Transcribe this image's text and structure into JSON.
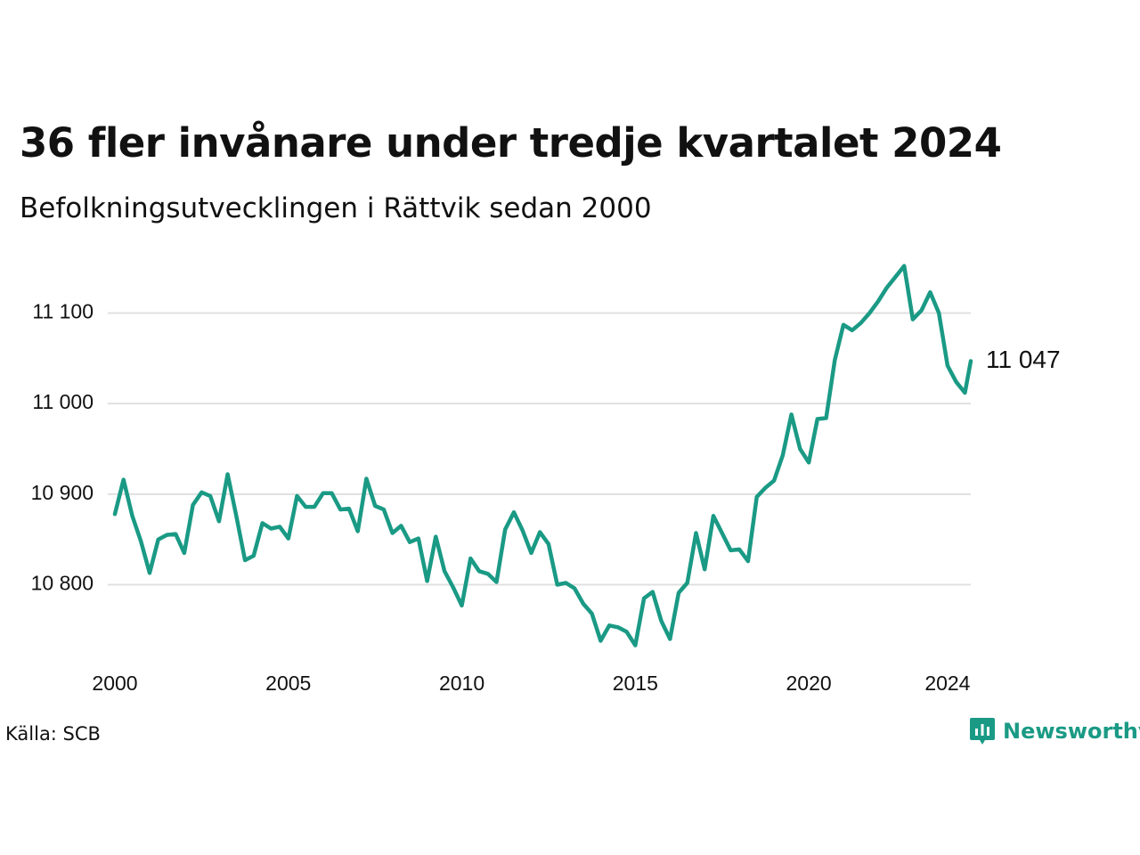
{
  "title": "36 fler invånare under tredje kvartalet 2024",
  "subtitle": "Befolkningsutvecklingen i Rättvik sedan 2000",
  "source": "Källa: SCB",
  "brand": {
    "name": "Newsworthy",
    "icon": "bar-chart-logo-icon",
    "color": "#1a9a85"
  },
  "chart_data": {
    "type": "line",
    "series_color": "#1a9a85",
    "grid": true,
    "ylim": [
      10725,
      11160
    ],
    "xlim": [
      2000,
      2024.67
    ],
    "y_ticks": [
      10800,
      10900,
      11000,
      11100
    ],
    "y_tick_labels": [
      "10 800",
      "10 900",
      "11 000",
      "11 100"
    ],
    "x_ticks": [
      2000,
      2005,
      2010,
      2015,
      2020,
      2024
    ],
    "x_tick_labels": [
      "2000",
      "2005",
      "2010",
      "2015",
      "2020",
      "2024"
    ],
    "end_label": "11 047",
    "x": [
      2000.0,
      2000.25,
      2000.5,
      2000.75,
      2001.0,
      2001.25,
      2001.5,
      2001.75,
      2002.0,
      2002.25,
      2002.5,
      2002.75,
      2003.0,
      2003.25,
      2003.5,
      2003.75,
      2004.0,
      2004.25,
      2004.5,
      2004.75,
      2005.0,
      2005.25,
      2005.5,
      2005.75,
      2006.0,
      2006.25,
      2006.5,
      2006.75,
      2007.0,
      2007.25,
      2007.5,
      2007.75,
      2008.0,
      2008.25,
      2008.5,
      2008.75,
      2009.0,
      2009.25,
      2009.5,
      2009.75,
      2010.0,
      2010.25,
      2010.5,
      2010.75,
      2011.0,
      2011.25,
      2011.5,
      2011.75,
      2012.0,
      2012.25,
      2012.5,
      2012.75,
      2013.0,
      2013.25,
      2013.5,
      2013.75,
      2014.0,
      2014.25,
      2014.5,
      2014.75,
      2015.0,
      2015.25,
      2015.5,
      2015.75,
      2016.0,
      2016.25,
      2016.5,
      2016.75,
      2017.0,
      2017.25,
      2017.5,
      2017.75,
      2018.0,
      2018.25,
      2018.5,
      2018.75,
      2019.0,
      2019.25,
      2019.5,
      2019.75,
      2020.0,
      2020.25,
      2020.5,
      2020.75,
      2021.0,
      2021.25,
      2021.5,
      2021.75,
      2022.0,
      2022.25,
      2022.5,
      2022.75,
      2023.0,
      2023.25,
      2023.5,
      2023.75,
      2024.0,
      2024.25,
      2024.5,
      2024.67
    ],
    "values": [
      10878,
      10916,
      10876,
      10848,
      10813,
      10850,
      10855,
      10856,
      10835,
      10888,
      10902,
      10898,
      10870,
      10922,
      10876,
      10827,
      10832,
      10868,
      10862,
      10864,
      10851,
      10898,
      10886,
      10886,
      10901,
      10901,
      10883,
      10884,
      10859,
      10917,
      10887,
      10883,
      10857,
      10865,
      10847,
      10851,
      10804,
      10853,
      10815,
      10797,
      10777,
      10829,
      10815,
      10812,
      10803,
      10861,
      10880,
      10860,
      10835,
      10858,
      10845,
      10800,
      10802,
      10796,
      10779,
      10768,
      10738,
      10755,
      10753,
      10748,
      10733,
      10785,
      10792,
      10760,
      10740,
      10791,
      10802,
      10857,
      10817,
      10876,
      10857,
      10838,
      10839,
      10826,
      10897,
      10907,
      10915,
      10943,
      10988,
      10950,
      10935,
      10983,
      10984,
      11048,
      11087,
      11081,
      11089,
      11100,
      11113,
      11128,
      11140,
      11152,
      11093,
      11103,
      11123,
      11100,
      11042,
      11024,
      11012,
      11047
    ]
  }
}
